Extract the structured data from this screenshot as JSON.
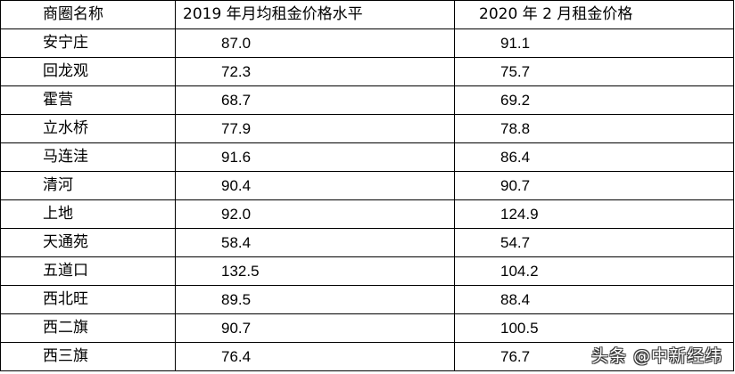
{
  "table": {
    "headers": [
      "商圈名称",
      "2019 年月均租金价格水平",
      "2020 年 2 月租金价格"
    ],
    "rows": [
      {
        "name": "安宁庄",
        "avg2019": "87.0",
        "feb2020": "91.1"
      },
      {
        "name": "回龙观",
        "avg2019": "72.3",
        "feb2020": "75.7"
      },
      {
        "name": "霍营",
        "avg2019": "68.7",
        "feb2020": "69.2"
      },
      {
        "name": "立水桥",
        "avg2019": "77.9",
        "feb2020": "78.8"
      },
      {
        "name": "马连洼",
        "avg2019": "91.6",
        "feb2020": "86.4"
      },
      {
        "name": "清河",
        "avg2019": "90.4",
        "feb2020": "90.7"
      },
      {
        "name": "上地",
        "avg2019": "92.0",
        "feb2020": "124.9"
      },
      {
        "name": "天通苑",
        "avg2019": "58.4",
        "feb2020": "54.7"
      },
      {
        "name": "五道口",
        "avg2019": "132.5",
        "feb2020": "104.2"
      },
      {
        "name": "西北旺",
        "avg2019": "89.5",
        "feb2020": "88.4"
      },
      {
        "name": "西二旗",
        "avg2019": "90.7",
        "feb2020": "100.5"
      },
      {
        "name": "西三旗",
        "avg2019": "76.4",
        "feb2020": "76.7"
      }
    ]
  },
  "watermark": "头条 @中新经纬"
}
